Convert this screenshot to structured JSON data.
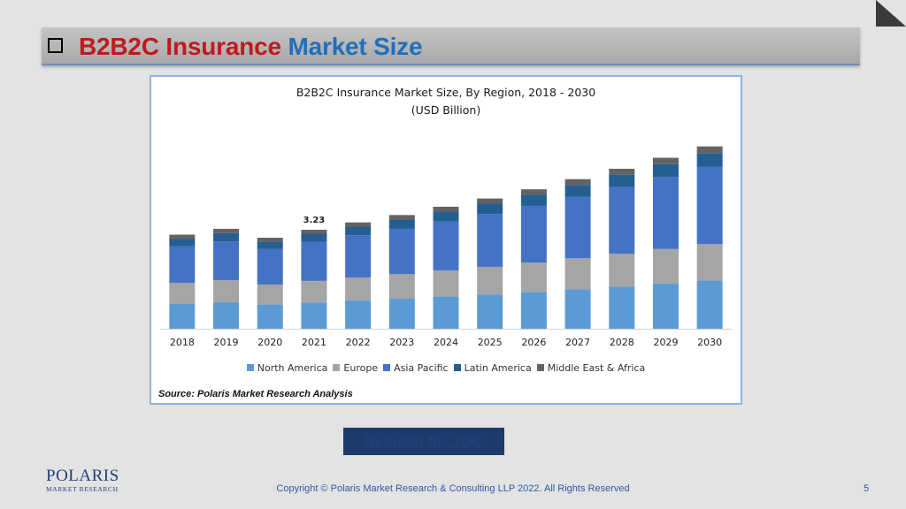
{
  "slide": {
    "title_part1": "B2B2C Insurance",
    "title_part2": "Market Size",
    "toc_button": "Request for TOC",
    "copyright": "Copyright © Polaris Market Research & Consulting LLP 2022. All Rights Reserved",
    "page_number": "5",
    "logo_name": "POLARIS",
    "logo_sub": "MARKET RESEARCH",
    "colors": {
      "title_red": "#c0191f",
      "title_blue": "#1f6fbe",
      "toc_bg": "#1b3b6b"
    }
  },
  "chart_data": {
    "type": "bar",
    "stacked": true,
    "title": "B2B2C Insurance Market Size, By Region, 2018 - 2030",
    "subtitle": "(USD Billion)",
    "source": "Source: Polaris  Market Research Analysis",
    "categories": [
      "2018",
      "2019",
      "2020",
      "2021",
      "2022",
      "2023",
      "2024",
      "2025",
      "2026",
      "2027",
      "2028",
      "2029",
      "2030"
    ],
    "series": [
      {
        "name": "North America",
        "color": "#5b9bd5",
        "values": [
          0.82,
          0.87,
          0.79,
          0.86,
          0.92,
          0.98,
          1.05,
          1.12,
          1.2,
          1.29,
          1.38,
          1.47,
          1.57
        ]
      },
      {
        "name": "Europe",
        "color": "#a5a5a5",
        "values": [
          0.68,
          0.71,
          0.65,
          0.7,
          0.75,
          0.8,
          0.85,
          0.9,
          0.96,
          1.01,
          1.07,
          1.13,
          1.19
        ]
      },
      {
        "name": "Asia Pacific",
        "color": "#4472c4",
        "values": [
          1.19,
          1.27,
          1.17,
          1.28,
          1.38,
          1.48,
          1.6,
          1.72,
          1.85,
          2.01,
          2.17,
          2.35,
          2.53
        ]
      },
      {
        "name": "Latin America",
        "color": "#255e91",
        "values": [
          0.25,
          0.27,
          0.24,
          0.26,
          0.28,
          0.3,
          0.32,
          0.34,
          0.36,
          0.38,
          0.4,
          0.42,
          0.44
        ]
      },
      {
        "name": "Middle East & Africa",
        "color": "#636363",
        "values": [
          0.13,
          0.14,
          0.12,
          0.13,
          0.14,
          0.15,
          0.16,
          0.17,
          0.18,
          0.19,
          0.2,
          0.21,
          0.22
        ]
      }
    ],
    "annotations": [
      {
        "category": "2021",
        "text": "3.23"
      }
    ],
    "legend_position": "bottom",
    "grid": false,
    "ylim": [
      0,
      6.2
    ]
  }
}
